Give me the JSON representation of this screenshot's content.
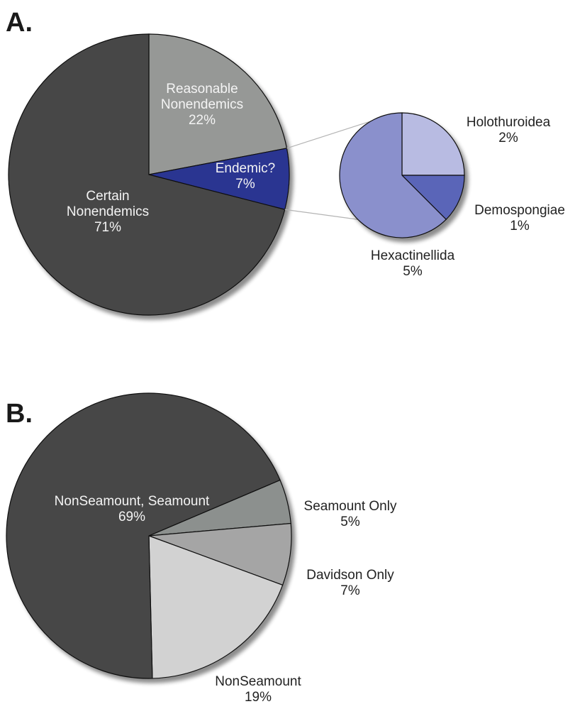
{
  "chart_data": [
    {
      "panel": "A.",
      "type": "pie",
      "slices": [
        {
          "label_lines": [
            "Certain",
            "Nonendemics",
            "71%"
          ],
          "value": 71,
          "color": "#474747"
        },
        {
          "label_lines": [
            "Reasonable",
            "Nonendemics",
            "22%"
          ],
          "value": 22,
          "color": "#969896"
        },
        {
          "label_lines": [
            "Endemic?",
            "7%"
          ],
          "value": 7,
          "color": "#2c3591"
        }
      ],
      "breakdown_of": "Endemic?",
      "breakdown": {
        "type": "pie",
        "slices": [
          {
            "label_lines": [
              "Hexactinellida",
              "5%"
            ],
            "value": 5,
            "color": "#8a90cc"
          },
          {
            "label_lines": [
              "Holothuroidea",
              "2%"
            ],
            "value": 2,
            "color": "#b8bbe2"
          },
          {
            "label_lines": [
              "Demospongiae",
              "1%"
            ],
            "value": 1,
            "color": "#5a65b8"
          }
        ]
      }
    },
    {
      "panel": "B.",
      "type": "pie",
      "slices": [
        {
          "label_lines": [
            "NonSeamount, Seamount",
            "69%"
          ],
          "value": 69,
          "color": "#474747"
        },
        {
          "label_lines": [
            "Seamount Only",
            "5%"
          ],
          "value": 5,
          "color": "#8c908e"
        },
        {
          "label_lines": [
            "Davidson Only",
            "7%"
          ],
          "value": 7,
          "color": "#a5a5a5"
        },
        {
          "label_lines": [
            "NonSeamount",
            "19%"
          ],
          "value": 19,
          "color": "#d2d2d2"
        }
      ]
    }
  ]
}
